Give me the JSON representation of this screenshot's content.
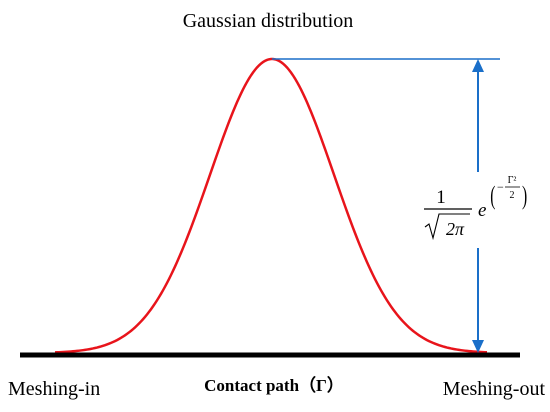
{
  "title": "Gaussian distribution",
  "xlabel": "Contact path（Γ）",
  "left_label": "Meshing-in",
  "right_label": "Meshing-out",
  "formula": {
    "numerator": "1",
    "denominator_symbol": "2π",
    "base": "e",
    "exp_sign": "−",
    "exp_num": "Γ²",
    "exp_den": "2",
    "paren_open": "(",
    "paren_close": ")"
  },
  "colors": {
    "curve": "#e8141b",
    "axis": "#000000",
    "annotation": "#1a6fc9"
  },
  "icons": {
    "arrow-up": "arrowhead-up-icon",
    "arrow-down": "arrowhead-down-icon"
  }
}
